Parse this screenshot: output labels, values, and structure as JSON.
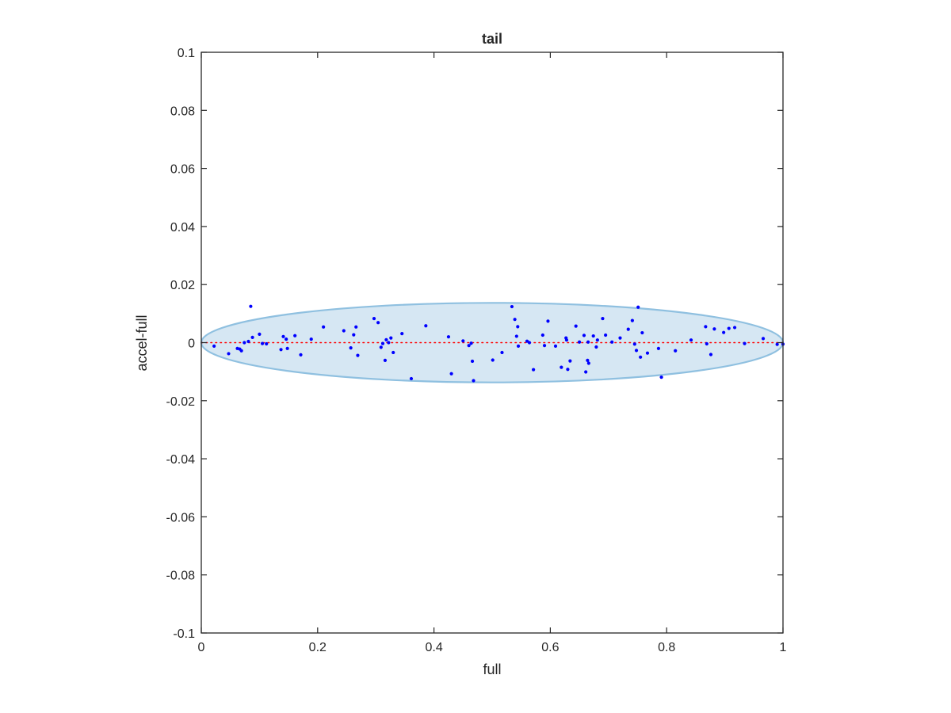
{
  "chart_data": {
    "type": "scatter",
    "title": "tail",
    "xlabel": "full",
    "ylabel": "accel-full",
    "xlim": [
      0,
      1
    ],
    "ylim": [
      -0.1,
      0.1
    ],
    "x_ticks": [
      0,
      0.2,
      0.4,
      0.6,
      0.8,
      1
    ],
    "x_tick_labels": [
      "0",
      "0.2",
      "0.4",
      "0.6",
      "0.8",
      "1"
    ],
    "y_ticks": [
      -0.1,
      -0.08,
      -0.06,
      -0.04,
      -0.02,
      0,
      0.02,
      0.04,
      0.06,
      0.08,
      0.1
    ],
    "y_tick_labels": [
      "-0.1",
      "-0.08",
      "-0.06",
      "-0.04",
      "-0.02",
      "0",
      "0.02",
      "0.04",
      "0.06",
      "0.08",
      "0.1"
    ],
    "grid": false,
    "reference_line": {
      "y": 0,
      "style": "dotted",
      "color": "#ff0000"
    },
    "ellipse": {
      "center": [
        0.5,
        0
      ],
      "x_radius": 0.5,
      "y_radius": 0.0137,
      "fill": "#d6e7f3",
      "stroke": "#8fc0e0"
    },
    "series": [
      {
        "color": "#0000ff",
        "points": [
          [
            0.022,
            -0.0012
          ],
          [
            0.047,
            -0.0038
          ],
          [
            0.062,
            -0.002
          ],
          [
            0.066,
            -0.0022
          ],
          [
            0.069,
            -0.0028
          ],
          [
            0.074,
            0.0
          ],
          [
            0.081,
            0.0004
          ],
          [
            0.085,
            0.0125
          ],
          [
            0.088,
            0.0018
          ],
          [
            0.1,
            0.0029
          ],
          [
            0.105,
            -0.0003
          ],
          [
            0.112,
            -0.0004
          ],
          [
            0.137,
            -0.0024
          ],
          [
            0.141,
            0.0021
          ],
          [
            0.146,
            0.0012
          ],
          [
            0.148,
            -0.002
          ],
          [
            0.161,
            0.0024
          ],
          [
            0.171,
            -0.0042
          ],
          [
            0.189,
            0.0012
          ],
          [
            0.21,
            0.0054
          ],
          [
            0.245,
            0.0041
          ],
          [
            0.257,
            -0.0018
          ],
          [
            0.262,
            0.0027
          ],
          [
            0.266,
            0.0054
          ],
          [
            0.269,
            -0.0044
          ],
          [
            0.297,
            0.0083
          ],
          [
            0.304,
            0.0069
          ],
          [
            0.309,
            -0.0016
          ],
          [
            0.312,
            -0.0003
          ],
          [
            0.316,
            -0.0061
          ],
          [
            0.318,
            0.001
          ],
          [
            0.322,
            0.0
          ],
          [
            0.326,
            0.0016
          ],
          [
            0.33,
            -0.0034
          ],
          [
            0.345,
            0.0031
          ],
          [
            0.361,
            -0.0124
          ],
          [
            0.386,
            0.0058
          ],
          [
            0.425,
            0.002
          ],
          [
            0.43,
            -0.0107
          ],
          [
            0.45,
            0.0006
          ],
          [
            0.46,
            -0.001
          ],
          [
            0.464,
            -0.0002
          ],
          [
            0.466,
            -0.0064
          ],
          [
            0.468,
            -0.0131
          ],
          [
            0.501,
            -0.006
          ],
          [
            0.517,
            -0.0034
          ],
          [
            0.534,
            0.0124
          ],
          [
            0.539,
            0.008
          ],
          [
            0.542,
            0.0022
          ],
          [
            0.544,
            0.0055
          ],
          [
            0.545,
            -0.0012
          ],
          [
            0.56,
            0.0005
          ],
          [
            0.564,
            0.0
          ],
          [
            0.571,
            -0.0093
          ],
          [
            0.587,
            0.0026
          ],
          [
            0.59,
            -0.001
          ],
          [
            0.596,
            0.0074
          ],
          [
            0.609,
            -0.0012
          ],
          [
            0.619,
            -0.0085
          ],
          [
            0.627,
            0.0016
          ],
          [
            0.628,
            0.0009
          ],
          [
            0.63,
            -0.0092
          ],
          [
            0.634,
            -0.0063
          ],
          [
            0.644,
            0.0057
          ],
          [
            0.65,
            0.0002
          ],
          [
            0.658,
            0.0025
          ],
          [
            0.661,
            -0.0101
          ],
          [
            0.664,
            -0.0061
          ],
          [
            0.665,
            0.0002
          ],
          [
            0.666,
            -0.0071
          ],
          [
            0.674,
            0.0023
          ],
          [
            0.679,
            -0.0015
          ],
          [
            0.681,
            0.0009
          ],
          [
            0.69,
            0.0083
          ],
          [
            0.695,
            0.0026
          ],
          [
            0.706,
            0.0002
          ],
          [
            0.72,
            0.0016
          ],
          [
            0.734,
            0.0046
          ],
          [
            0.741,
            0.0076
          ],
          [
            0.745,
            -0.0005
          ],
          [
            0.748,
            -0.0027
          ],
          [
            0.751,
            0.0122
          ],
          [
            0.755,
            -0.005
          ],
          [
            0.758,
            0.0034
          ],
          [
            0.767,
            -0.0036
          ],
          [
            0.786,
            -0.002
          ],
          [
            0.791,
            -0.0119
          ],
          [
            0.815,
            -0.0028
          ],
          [
            0.842,
            0.0009
          ],
          [
            0.867,
            0.0055
          ],
          [
            0.869,
            -0.0004
          ],
          [
            0.876,
            -0.0041
          ],
          [
            0.882,
            0.0047
          ],
          [
            0.898,
            0.0035
          ],
          [
            0.907,
            0.0049
          ],
          [
            0.917,
            0.0052
          ],
          [
            0.934,
            -0.0003
          ],
          [
            0.966,
            0.0014
          ],
          [
            0.99,
            -0.0006
          ],
          [
            1.0,
            -0.0005
          ]
        ]
      }
    ]
  }
}
